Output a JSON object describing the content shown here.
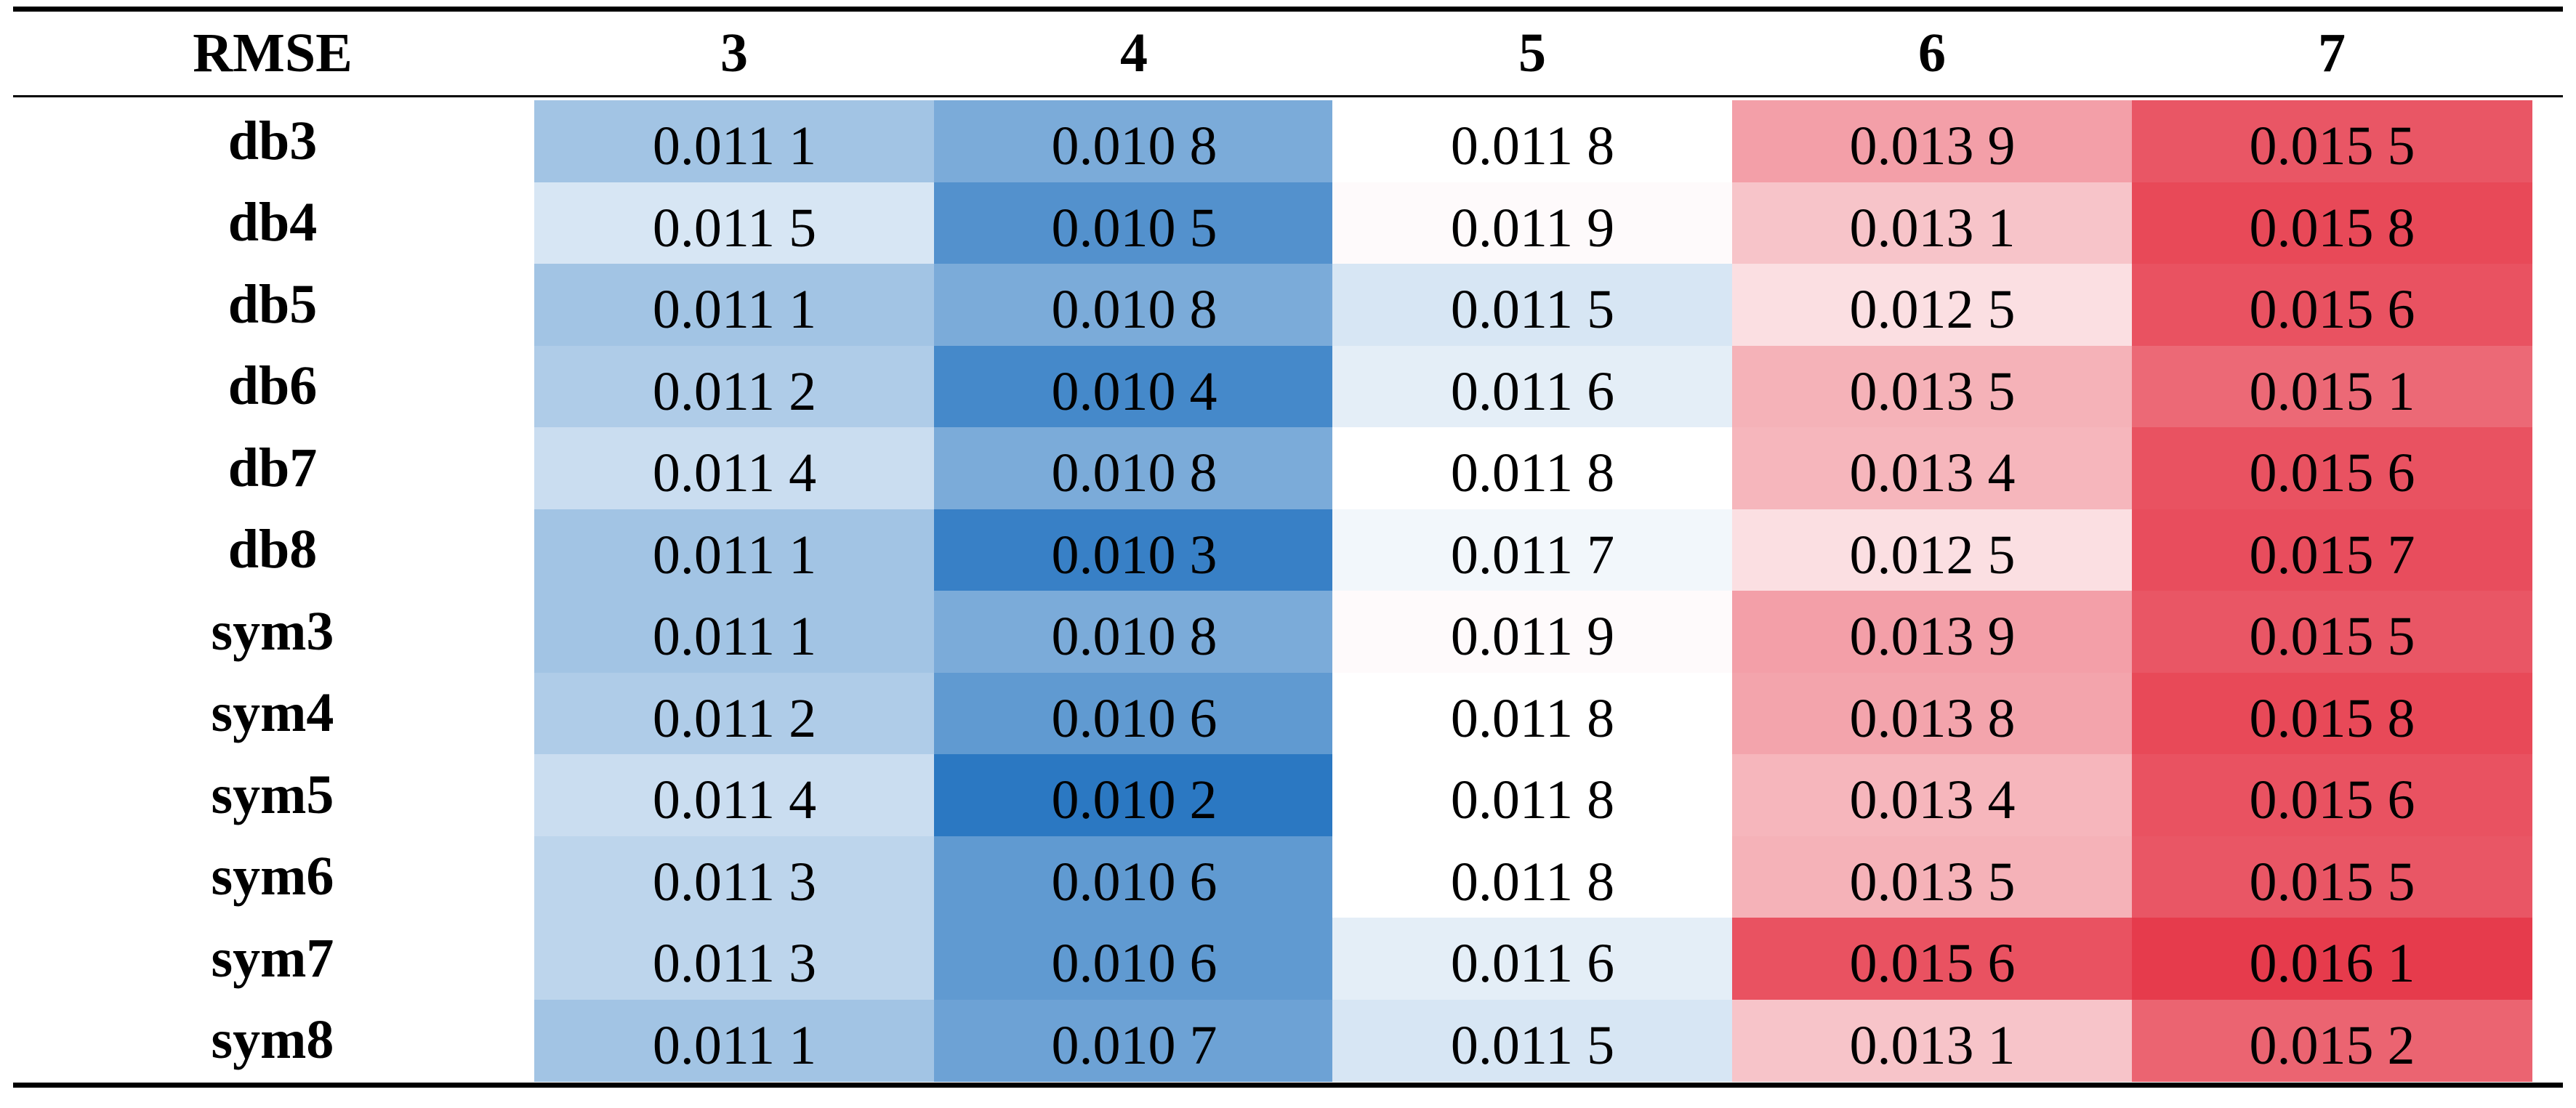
{
  "chart_data": {
    "type": "heatmap",
    "corner_label": "RMSE",
    "columns": [
      "3",
      "4",
      "5",
      "6",
      "7"
    ],
    "rows": [
      "db3",
      "db4",
      "db5",
      "db6",
      "db7",
      "db8",
      "sym3",
      "sym4",
      "sym5",
      "sym6",
      "sym7",
      "sym8"
    ],
    "values": [
      [
        0.0111,
        0.0108,
        0.0118,
        0.0139,
        0.0155
      ],
      [
        0.0115,
        0.0105,
        0.0119,
        0.0131,
        0.0158
      ],
      [
        0.0111,
        0.0108,
        0.0115,
        0.0125,
        0.0156
      ],
      [
        0.0112,
        0.0104,
        0.0116,
        0.0135,
        0.0151
      ],
      [
        0.0114,
        0.0108,
        0.0118,
        0.0134,
        0.0156
      ],
      [
        0.0111,
        0.0103,
        0.0117,
        0.0125,
        0.0157
      ],
      [
        0.0111,
        0.0108,
        0.0119,
        0.0139,
        0.0155
      ],
      [
        0.0112,
        0.0106,
        0.0118,
        0.0138,
        0.0158
      ],
      [
        0.0114,
        0.0102,
        0.0118,
        0.0134,
        0.0156
      ],
      [
        0.0113,
        0.0106,
        0.0118,
        0.0135,
        0.0155
      ],
      [
        0.0113,
        0.0106,
        0.0116,
        0.0156,
        0.0161
      ],
      [
        0.0111,
        0.0107,
        0.0115,
        0.0131,
        0.0152
      ]
    ],
    "labels": [
      [
        "0.011 1",
        "0.010 8",
        "0.011 8",
        "0.013 9",
        "0.015 5"
      ],
      [
        "0.011 5",
        "0.010 5",
        "0.011 9",
        "0.013 1",
        "0.015 8"
      ],
      [
        "0.011 1",
        "0.010 8",
        "0.011 5",
        "0.012 5",
        "0.015 6"
      ],
      [
        "0.011 2",
        "0.010 4",
        "0.011 6",
        "0.013 5",
        "0.015 1"
      ],
      [
        "0.011 4",
        "0.010 8",
        "0.011 8",
        "0.013 4",
        "0.015 6"
      ],
      [
        "0.011 1",
        "0.010 3",
        "0.011 7",
        "0.012 5",
        "0.015 7"
      ],
      [
        "0.011 1",
        "0.010 8",
        "0.011 9",
        "0.013 9",
        "0.015 5"
      ],
      [
        "0.011 2",
        "0.010 6",
        "0.011 8",
        "0.013 8",
        "0.015 8"
      ],
      [
        "0.011 4",
        "0.010 2",
        "0.011 8",
        "0.013 4",
        "0.015 6"
      ],
      [
        "0.011 3",
        "0.010 6",
        "0.011 8",
        "0.013 5",
        "0.015 5"
      ],
      [
        "0.011 3",
        "0.010 6",
        "0.011 6",
        "0.015 6",
        "0.016 1"
      ],
      [
        "0.011 1",
        "0.010 7",
        "0.011 5",
        "0.013 1",
        "0.015 2"
      ]
    ],
    "colorscale": {
      "low_color": "#2b78c2",
      "mid_color": "#ffffff",
      "high_color": "#e63b4c",
      "low_value": 0.0102,
      "mid_value": 0.0118,
      "high_value": 0.0161
    }
  }
}
